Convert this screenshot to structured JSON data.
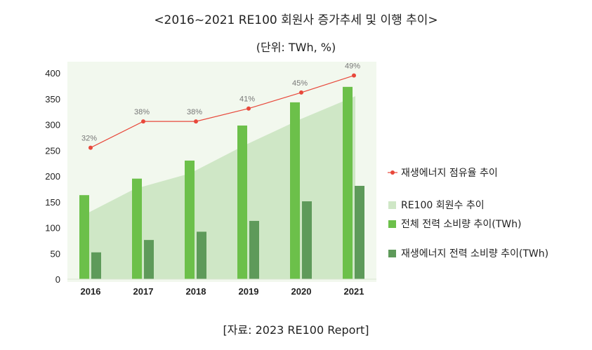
{
  "chart_data": {
    "type": "bar",
    "title": "<2016~2021 RE100 회원사 증가추세 및 이행 추이>",
    "subtitle": "(단위: TWh, %)",
    "source": "[자료: 2023 RE100 Report]",
    "categories": [
      "2016",
      "2017",
      "2018",
      "2019",
      "2020",
      "2021"
    ],
    "ylim": [
      0,
      400
    ],
    "yticks": [
      0,
      50,
      100,
      150,
      200,
      250,
      300,
      350,
      400
    ],
    "series": [
      {
        "name": "재생에너지 점유율 추이",
        "kind": "line",
        "color": "#e8483b",
        "values": [
          32,
          38,
          38,
          41,
          45,
          49
        ],
        "plot_values": [
          255,
          306,
          306,
          331,
          362,
          395
        ],
        "labels": [
          "32%",
          "38%",
          "38%",
          "41%",
          "45%",
          "49%"
        ]
      },
      {
        "name": "RE100 회원수 추이",
        "kind": "area",
        "color": "#cfe7c6",
        "values": [
          120,
          175,
          205,
          260,
          310,
          355
        ]
      },
      {
        "name": "전체 전력 소비량 추이(TWh)",
        "kind": "bar",
        "color": "#6cc04a",
        "values": [
          163,
          195,
          230,
          298,
          343,
          373
        ]
      },
      {
        "name": "재생에너지 전력 소비량 추이(TWh)",
        "kind": "bar",
        "color": "#5e9a5a",
        "values": [
          52,
          76,
          92,
          113,
          151,
          181
        ]
      }
    ],
    "legend_position": "right",
    "grid": false
  }
}
